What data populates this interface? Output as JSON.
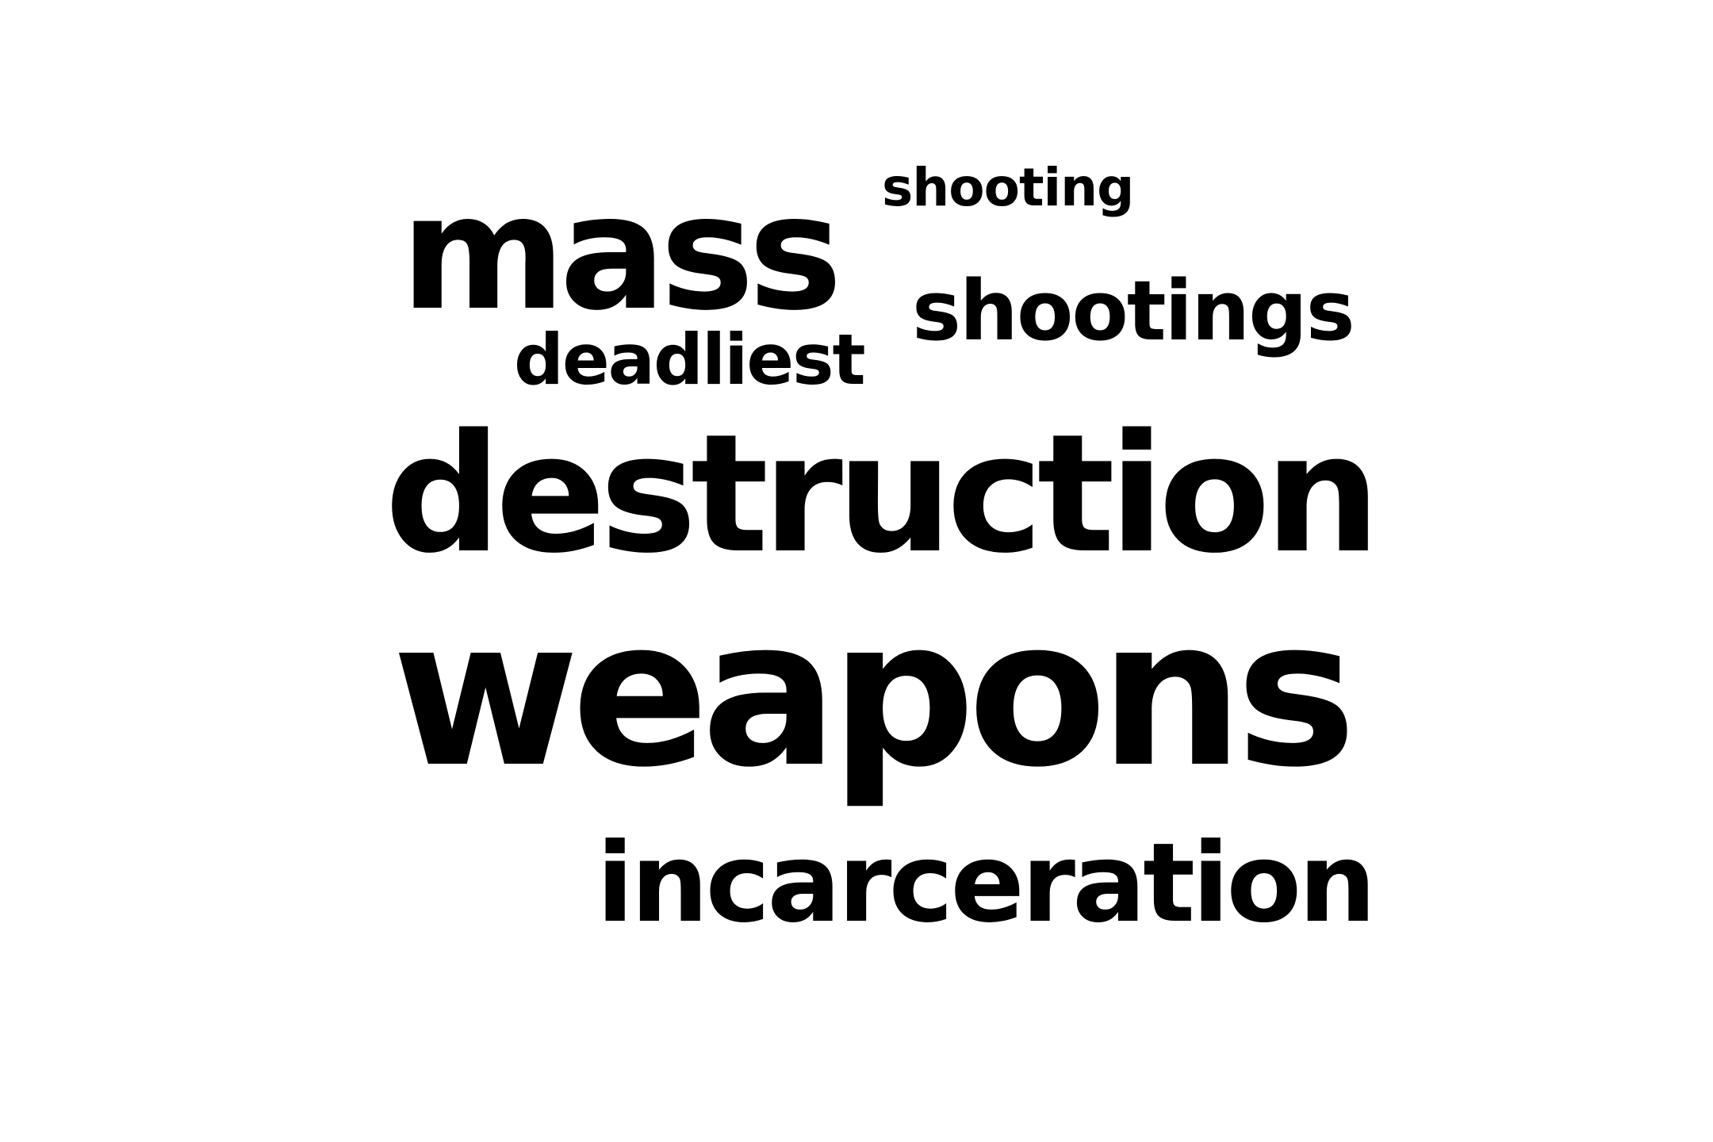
{
  "word_cloud": {
    "words": [
      {
        "text": "mass"
      },
      {
        "text": "shooting"
      },
      {
        "text": "shootings"
      },
      {
        "text": "deadliest"
      },
      {
        "text": "destruction"
      },
      {
        "text": "weapons"
      },
      {
        "text": "incarceration"
      }
    ],
    "text_color": "#000000",
    "background_color": "#ffffff"
  }
}
